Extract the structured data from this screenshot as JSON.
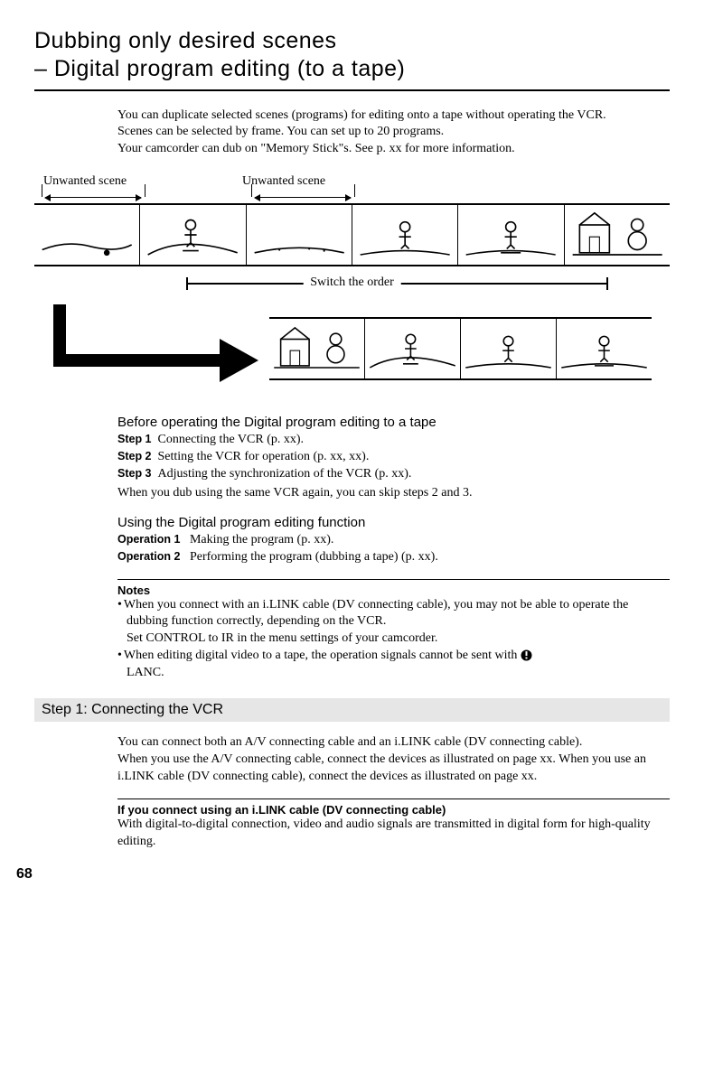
{
  "title_line1": "Dubbing only desired scenes",
  "title_line2": "– Digital program editing (to a tape)",
  "intro": "You can duplicate selected scenes (programs) for editing onto a tape without operating the VCR.\nScenes can be selected by frame. You can set up to 20 programs.\nYour camcorder can dub on \"Memory Stick\"s. See p. xx for more information.",
  "diagram": {
    "unwanted_label": "Unwanted scene",
    "switch_label": "Switch the order"
  },
  "before": {
    "heading": "Before operating the Digital program editing to a tape",
    "step_prefix": "Step",
    "steps": [
      "Connecting the VCR (p. xx).",
      "Setting the VCR for operation (p. xx, xx).",
      "Adjusting the synchronization of the VCR (p. xx)."
    ],
    "after": "When you dub using the same VCR again, you can skip steps 2 and 3."
  },
  "using": {
    "heading": "Using the Digital program editing function",
    "op_prefix": "Operation",
    "ops": [
      "Making the program (p. xx).",
      "Performing the program (dubbing a tape) (p. xx)."
    ]
  },
  "notes": {
    "heading": "Notes",
    "items": [
      {
        "text": "When you connect with an i.LINK cable (DV connecting cable), you may not be able to operate the dubbing function correctly, depending on the VCR.",
        "sub": "Set CONTROL to IR in the menu settings of your camcorder."
      },
      {
        "text": "When editing digital video to a tape, the operation signals cannot be sent with",
        "trailing_icon": true,
        "sub": "LANC."
      }
    ]
  },
  "step1": {
    "bar": "Step 1: Connecting the VCR",
    "body": "You can connect both an A/V connecting cable and an i.LINK cable (DV connecting cable).\nWhen you use the A/V connecting cable, connect the devices as illustrated on page xx. When you use an i.LINK cable (DV connecting cable), connect the devices as illustrated on page xx.",
    "sub_head": "If you connect using an i.LINK cable (DV connecting cable)",
    "sub_body": "With digital-to-digital connection, video and audio signals are transmitted in digital form for high-quality editing."
  },
  "page_number": "68",
  "style": {
    "title_fontsize": 25,
    "body_fontsize": 14,
    "section_fontsize": 15,
    "step_bar_bg": "#e6e6e6",
    "text_color": "#000000",
    "title_font": "Verdana",
    "body_font": "Palatino"
  }
}
